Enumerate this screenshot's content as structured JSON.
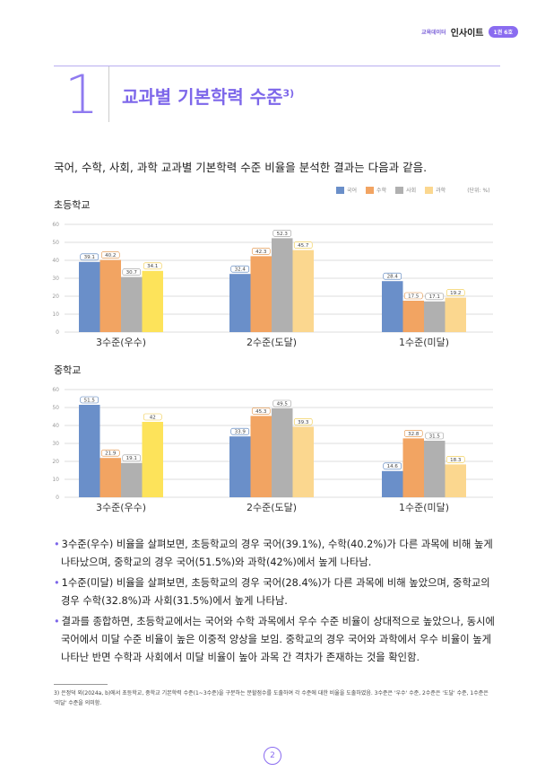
{
  "header": {
    "subtitle": "교육데이터",
    "brand": "인사이트",
    "badge": "1권 6호"
  },
  "section": {
    "number": "1",
    "title": "교과별 기본학력 수준",
    "footnote_mark": "3)"
  },
  "intro": "국어, 수학, 사회, 과학 교과별 기본학력 수준 비율을 분석한 결과는 다음과 같음.",
  "legend": {
    "items": [
      "국어",
      "수학",
      "사회",
      "과학"
    ],
    "unit": "(단위: %)"
  },
  "colors": {
    "국어": "#6a8fc9",
    "수학": "#f2a462",
    "사회": "#b0b0b0",
    "과학": "#fbd78f",
    "과학_highlight": "#fde35a",
    "accent": "#7d67ea"
  },
  "chart_data": [
    {
      "type": "bar",
      "title": "초등학교",
      "categories": [
        "3수준(우수)",
        "2수준(도달)",
        "1수준(미달)"
      ],
      "ylim": [
        0,
        60
      ],
      "yticks": [
        "0",
        "10",
        "20",
        "30",
        "40",
        "50",
        "60"
      ],
      "series": [
        {
          "name": "국어",
          "values": [
            39.1,
            32.4,
            28.4
          ]
        },
        {
          "name": "수학",
          "values": [
            40.2,
            42.3,
            17.5
          ]
        },
        {
          "name": "사회",
          "values": [
            30.7,
            52.3,
            17.1
          ]
        },
        {
          "name": "과학",
          "values": [
            34.1,
            45.7,
            19.2
          ]
        }
      ]
    },
    {
      "type": "bar",
      "title": "중학교",
      "categories": [
        "3수준(우수)",
        "2수준(도달)",
        "1수준(미달)"
      ],
      "ylim": [
        0,
        60
      ],
      "yticks": [
        "0",
        "10",
        "20",
        "30",
        "40",
        "50",
        "60"
      ],
      "series": [
        {
          "name": "국어",
          "values": [
            51.5,
            33.9,
            14.6
          ]
        },
        {
          "name": "수학",
          "values": [
            21.9,
            45.3,
            32.8
          ]
        },
        {
          "name": "사회",
          "values": [
            19.1,
            49.5,
            31.5
          ]
        },
        {
          "name": "과학",
          "values": [
            42,
            39.3,
            18.3
          ]
        }
      ]
    }
  ],
  "bullets": [
    "3수준(우수) 비율을 살펴보면, 초등학교의 경우 국어(39.1%), 수학(40.2%)가 다른 과목에 비해 높게 나타났으며, 중학교의 경우 국어(51.5%)와 과학(42%)에서 높게 나타남.",
    "1수준(미달) 비율을 살펴보면, 초등학교의 경우 국어(28.4%)가 다른 과목에 비해 높았으며, 중학교의 경우 수학(32.8%)과 사회(31.5%)에서 높게 나타남.",
    "결과를 종합하면, 초등학교에서는 국어와 수학 과목에서 우수 수준 비율이 상대적으로 높았으나, 동시에 국어에서 미달 수준 비율이 높은 이중적 양상을 보임. 중학교의 경우 국어와 과학에서 우수 비율이 높게 나타난 반면 수학과 사회에서 미달 비율이 높아 과목 간 격차가 존재하는 것을 확인함."
  ],
  "footnote": "3) 은정덕 외(2024a, b)에서 초등학교, 중학교 기본학력 수준(1~3수준)을 구분하는 분할점수를 도출하여 각 수준에 대한 비율을 도출하였음. 3수준은 '우수' 수준, 2수준은 '도달' 수준, 1수준은 '미달' 수준을 의미함.",
  "page_number": "2"
}
